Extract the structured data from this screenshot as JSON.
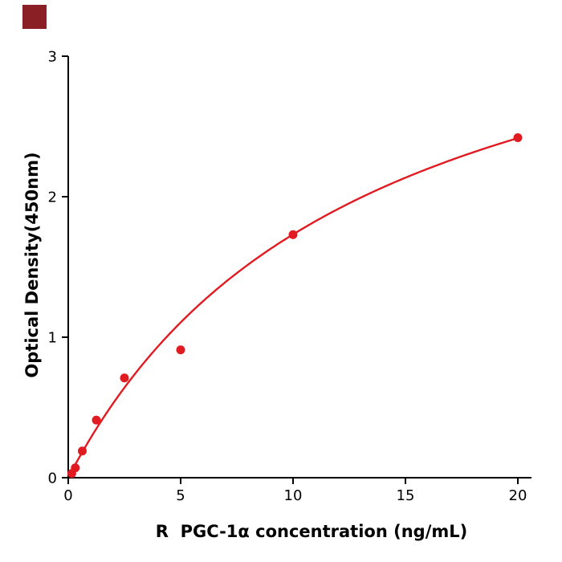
{
  "logo": {
    "color": "#8a2026"
  },
  "chart_data": {
    "type": "scatter",
    "title": "",
    "xlabel": "R  PGC-1α concentration (ng/mL)",
    "ylabel": "Optical Density(450nm)",
    "x": [
      0.156,
      0.313,
      0.625,
      1.25,
      2.5,
      5,
      10,
      20
    ],
    "y": [
      0.03,
      0.07,
      0.19,
      0.41,
      0.71,
      0.91,
      1.73,
      2.42
    ],
    "xlim": [
      0,
      20.6
    ],
    "ylim": [
      0,
      3
    ],
    "xticks": [
      0,
      5,
      10,
      15,
      20
    ],
    "yticks": [
      0,
      1,
      2,
      3
    ],
    "fit_curve": {
      "type": "michaelis_menten",
      "vmax": 4.0,
      "km": 13.1,
      "x_start": 0.05,
      "x_end": 20
    },
    "point_color": "#e11b22",
    "line_color": "#e11b22",
    "axis_color": "#000000",
    "tick_font_size": 18,
    "grid": false,
    "legend": false
  }
}
